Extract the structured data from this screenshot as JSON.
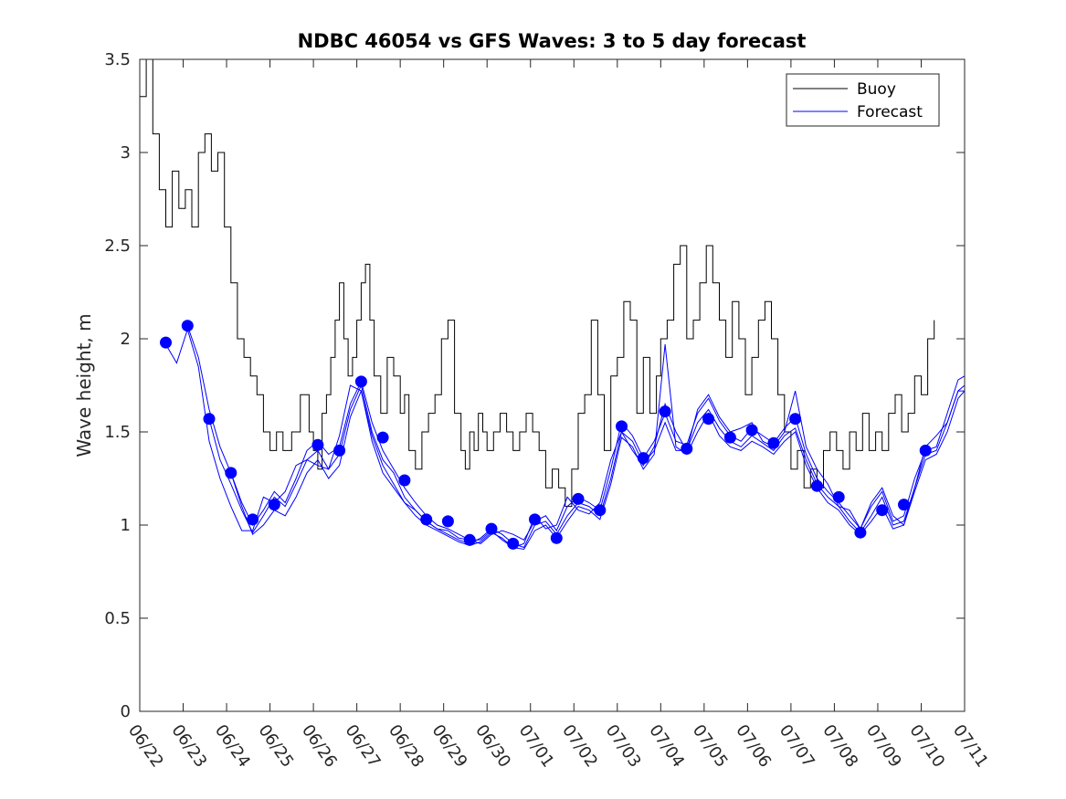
{
  "chart_data": {
    "type": "line",
    "title": "NDBC 46054 vs GFS Waves: 3 to 5 day forecast",
    "ylabel": "Wave height, m",
    "xlabel": "",
    "ylim": [
      0,
      3.5
    ],
    "xlim": [
      0,
      19
    ],
    "yticks": [
      "0",
      "0.5",
      "1",
      "1.5",
      "2",
      "2.5",
      "3",
      "3.5"
    ],
    "xticks": [
      "06/22",
      "06/23",
      "06/24",
      "06/25",
      "06/26",
      "06/27",
      "06/28",
      "06/29",
      "06/30",
      "07/01",
      "07/02",
      "07/03",
      "07/04",
      "07/05",
      "07/06",
      "07/07",
      "07/08",
      "07/09",
      "07/10",
      "07/11"
    ],
    "legend_position": "top-right",
    "grid": false,
    "colors": {
      "buoy": "#000000",
      "forecast": "#0000ff"
    },
    "series": [
      {
        "name": "Buoy",
        "x": [
          0,
          0.15,
          0.3,
          0.45,
          0.6,
          0.75,
          0.9,
          1.05,
          1.2,
          1.35,
          1.5,
          1.65,
          1.8,
          1.95,
          2.1,
          2.25,
          2.4,
          2.55,
          2.7,
          2.85,
          3.0,
          3.15,
          3.3,
          3.5,
          3.7,
          3.9,
          4.0,
          4.1,
          4.2,
          4.3,
          4.4,
          4.5,
          4.6,
          4.7,
          4.8,
          4.9,
          5.0,
          5.1,
          5.2,
          5.3,
          5.4,
          5.55,
          5.7,
          5.85,
          6.0,
          6.1,
          6.2,
          6.35,
          6.5,
          6.65,
          6.8,
          6.95,
          7.1,
          7.25,
          7.4,
          7.5,
          7.6,
          7.7,
          7.8,
          7.9,
          8.0,
          8.15,
          8.3,
          8.45,
          8.6,
          8.75,
          8.9,
          9.05,
          9.2,
          9.35,
          9.5,
          9.65,
          9.8,
          9.95,
          10.1,
          10.25,
          10.4,
          10.55,
          10.7,
          10.85,
          11.0,
          11.15,
          11.3,
          11.45,
          11.6,
          11.75,
          11.9,
          12.0,
          12.15,
          12.3,
          12.45,
          12.6,
          12.75,
          12.9,
          13.05,
          13.2,
          13.35,
          13.5,
          13.65,
          13.8,
          13.95,
          14.1,
          14.25,
          14.4,
          14.55,
          14.7,
          14.85,
          15.0,
          15.15,
          15.3,
          15.45,
          15.6,
          15.75,
          15.9,
          16.05,
          16.2,
          16.35,
          16.5,
          16.65,
          16.8,
          16.95,
          17.1,
          17.25,
          17.4,
          17.55,
          17.7,
          17.85,
          18.0,
          18.15,
          18.3
        ],
        "values": [
          3.3,
          3.5,
          3.1,
          2.8,
          2.6,
          2.9,
          2.7,
          2.8,
          2.6,
          3.0,
          3.1,
          2.9,
          3.0,
          2.6,
          2.3,
          2.0,
          1.9,
          1.8,
          1.7,
          1.5,
          1.4,
          1.5,
          1.4,
          1.5,
          1.7,
          1.5,
          1.4,
          1.3,
          1.6,
          1.7,
          1.9,
          2.1,
          2.3,
          2.0,
          1.8,
          1.9,
          2.1,
          2.3,
          2.4,
          2.1,
          1.8,
          1.6,
          1.9,
          1.8,
          1.6,
          1.7,
          1.4,
          1.3,
          1.5,
          1.6,
          1.7,
          2.0,
          2.1,
          1.6,
          1.4,
          1.3,
          1.5,
          1.4,
          1.6,
          1.5,
          1.4,
          1.5,
          1.6,
          1.5,
          1.4,
          1.5,
          1.6,
          1.5,
          1.4,
          1.2,
          1.3,
          1.2,
          1.1,
          1.3,
          1.6,
          1.7,
          2.1,
          1.7,
          1.4,
          1.8,
          1.9,
          2.2,
          2.1,
          1.6,
          1.9,
          1.6,
          1.8,
          2.0,
          2.1,
          2.4,
          2.5,
          2.0,
          2.1,
          2.3,
          2.5,
          2.3,
          2.1,
          1.9,
          2.2,
          2.0,
          1.7,
          1.9,
          2.1,
          2.2,
          2.0,
          1.7,
          1.5,
          1.3,
          1.4,
          1.2,
          1.3,
          1.2,
          1.4,
          1.5,
          1.4,
          1.3,
          1.5,
          1.4,
          1.6,
          1.4,
          1.5,
          1.4,
          1.6,
          1.7,
          1.5,
          1.6,
          1.8,
          1.7,
          2.0,
          2.1
        ]
      },
      {
        "name": "Forecast",
        "marker_x": [
          0.6,
          1.1,
          1.6,
          2.1,
          2.6,
          3.1,
          4.1,
          4.6,
          5.1,
          5.6,
          6.1,
          6.6,
          7.1,
          7.6,
          8.1,
          8.6,
          9.1,
          9.6,
          10.1,
          10.6,
          11.1,
          11.6,
          12.1,
          12.6,
          13.1,
          13.6,
          14.1,
          14.6,
          15.1,
          15.6,
          16.1,
          16.6,
          17.1,
          17.6,
          18.1
        ],
        "marker_values": [
          1.98,
          2.07,
          1.57,
          1.28,
          1.03,
          1.11,
          1.43,
          1.4,
          1.77,
          1.47,
          1.24,
          1.03,
          1.02,
          0.92,
          0.98,
          0.9,
          1.03,
          0.93,
          1.14,
          1.08,
          1.53,
          1.36,
          1.61,
          1.41,
          1.57,
          1.47,
          1.51,
          1.44,
          1.57,
          1.21,
          1.15,
          0.96,
          1.08,
          1.11,
          1.4
        ],
        "runs": [
          {
            "x": [
              0.6,
              0.85,
              1.1,
              1.35,
              1.6,
              1.85,
              2.1,
              2.35,
              2.6,
              2.85,
              3.1,
              3.35,
              3.6,
              3.85,
              4.1,
              4.35,
              4.6,
              4.85,
              5.1,
              5.35,
              5.6,
              5.85,
              6.1,
              6.35,
              6.6,
              6.85,
              7.1,
              7.35,
              7.6,
              7.85,
              8.1,
              8.35,
              8.6,
              8.85,
              9.1,
              9.35,
              9.6,
              9.85,
              10.1,
              10.35,
              10.6,
              10.85,
              11.1,
              11.35,
              11.6,
              11.85,
              12.1,
              12.35,
              12.6,
              12.85,
              13.1,
              13.35,
              13.6,
              13.85,
              14.1,
              14.35,
              14.6,
              14.85,
              15.1,
              15.35,
              15.6,
              15.85,
              16.1,
              16.35,
              16.6,
              16.85,
              17.1,
              17.35,
              17.6,
              17.85,
              18.1,
              18.35,
              18.6,
              18.85,
              19.0
            ],
            "values": [
              1.97,
              1.87,
              2.05,
              1.85,
              1.45,
              1.25,
              1.1,
              0.97,
              0.97,
              1.15,
              1.12,
              1.18,
              1.32,
              1.35,
              1.32,
              1.3,
              1.48,
              1.75,
              1.72,
              1.45,
              1.28,
              1.2,
              1.12,
              1.08,
              1.02,
              0.98,
              0.97,
              0.93,
              0.92,
              0.92,
              0.97,
              0.92,
              0.88,
              0.9,
              1.05,
              0.98,
              1.0,
              1.15,
              1.08,
              1.06,
              1.12,
              1.35,
              1.5,
              1.4,
              1.32,
              1.42,
              1.65,
              1.5,
              1.4,
              1.62,
              1.7,
              1.58,
              1.5,
              1.52,
              1.55,
              1.45,
              1.42,
              1.5,
              1.72,
              1.42,
              1.3,
              1.22,
              1.1,
              1.08,
              0.98,
              1.12,
              1.2,
              1.05,
              1.0,
              1.2,
              1.42,
              1.48,
              1.55,
              1.72,
              1.72
            ]
          },
          {
            "x": [
              1.1,
              1.35,
              1.6,
              1.85,
              2.1,
              2.35,
              2.6,
              2.85,
              3.1,
              3.35,
              3.6,
              3.85,
              4.1,
              4.35,
              4.6,
              4.85,
              5.1,
              5.35,
              5.6,
              5.85,
              6.1,
              6.35,
              6.6,
              6.85,
              7.1,
              7.35,
              7.6,
              7.85,
              8.1,
              8.35,
              8.6,
              8.85,
              9.1,
              9.35,
              9.6,
              9.85,
              10.1,
              10.35,
              10.6,
              10.85,
              11.1,
              11.35,
              11.6,
              11.85,
              12.1,
              12.35,
              12.6,
              12.85,
              13.1,
              13.35,
              13.6,
              13.85,
              14.1,
              14.35,
              14.6,
              14.85,
              15.1,
              15.35,
              15.6,
              15.85,
              16.1,
              16.35,
              16.6,
              16.85,
              17.1,
              17.35,
              17.6,
              17.85,
              18.1,
              18.35,
              18.6,
              18.85,
              19.0
            ],
            "values": [
              2.07,
              1.9,
              1.62,
              1.42,
              1.28,
              1.12,
              1.0,
              1.08,
              1.18,
              1.12,
              1.25,
              1.4,
              1.45,
              1.38,
              1.42,
              1.65,
              1.77,
              1.55,
              1.4,
              1.3,
              1.2,
              1.12,
              1.05,
              1.0,
              0.98,
              0.95,
              0.92,
              0.9,
              0.95,
              0.97,
              0.95,
              0.92,
              1.02,
              1.05,
              0.97,
              1.1,
              1.15,
              1.12,
              1.08,
              1.3,
              1.55,
              1.48,
              1.36,
              1.45,
              1.6,
              1.45,
              1.43,
              1.6,
              1.68,
              1.56,
              1.48,
              1.45,
              1.52,
              1.48,
              1.44,
              1.52,
              1.58,
              1.38,
              1.25,
              1.18,
              1.12,
              1.05,
              0.98,
              1.1,
              1.18,
              1.02,
              1.05,
              1.25,
              1.4,
              1.42,
              1.6,
              1.78,
              1.8
            ]
          },
          {
            "x": [
              1.6,
              1.85,
              2.1,
              2.35,
              2.6,
              2.85,
              3.1,
              3.35,
              3.6,
              3.85,
              4.1,
              4.35,
              4.6,
              4.85,
              5.1,
              5.35,
              5.6,
              5.85,
              6.1,
              6.35,
              6.6,
              6.85,
              7.1,
              7.35,
              7.6,
              7.85,
              8.1,
              8.35,
              8.6,
              8.85,
              9.1,
              9.35,
              9.6,
              9.85,
              10.1,
              10.35,
              10.6,
              10.85,
              11.1,
              11.35,
              11.6,
              11.85,
              12.1,
              12.35,
              12.6,
              12.85,
              13.1,
              13.35,
              13.6,
              13.85,
              14.1,
              14.35,
              14.6,
              14.85,
              15.1,
              15.35,
              15.6,
              15.85,
              16.1,
              16.35,
              16.6,
              16.85,
              17.1,
              17.35,
              17.6,
              17.85,
              18.1,
              18.35,
              18.6,
              18.85,
              19.0
            ],
            "values": [
              1.57,
              1.35,
              1.22,
              1.08,
              0.96,
              1.05,
              1.15,
              1.1,
              1.22,
              1.35,
              1.4,
              1.3,
              1.38,
              1.62,
              1.75,
              1.5,
              1.35,
              1.28,
              1.15,
              1.08,
              1.02,
              0.98,
              0.95,
              0.92,
              0.9,
              0.93,
              0.98,
              0.95,
              0.9,
              0.88,
              1.0,
              1.02,
              0.95,
              1.05,
              1.12,
              1.1,
              1.05,
              1.25,
              1.5,
              1.45,
              1.33,
              1.4,
              1.55,
              1.4,
              1.4,
              1.55,
              1.62,
              1.52,
              1.45,
              1.42,
              1.48,
              1.44,
              1.4,
              1.48,
              1.52,
              1.35,
              1.22,
              1.15,
              1.1,
              1.02,
              0.96,
              1.05,
              1.15,
              1.0,
              1.02,
              1.2,
              1.38,
              1.4,
              1.55,
              1.72,
              1.75
            ]
          },
          {
            "x": [
              2.1,
              2.35,
              2.6,
              2.85,
              3.1,
              3.35,
              3.6,
              3.85,
              4.1,
              4.35,
              4.6,
              4.85,
              5.1,
              5.35,
              5.6,
              5.85,
              6.1,
              6.35,
              6.6,
              6.85,
              7.1,
              7.35,
              7.6,
              7.85,
              8.1,
              8.35,
              8.6,
              8.85,
              9.1,
              9.35,
              9.6,
              9.85,
              10.1,
              10.35,
              10.6,
              10.85,
              11.1,
              11.35,
              11.6,
              11.85,
              12.1,
              12.35,
              12.6,
              12.85,
              13.1,
              13.35,
              13.6,
              13.85,
              14.1,
              14.35,
              14.6,
              14.85,
              15.1,
              15.35,
              15.6,
              15.85,
              16.1,
              16.35,
              16.6,
              16.85,
              17.1,
              17.35,
              17.6,
              17.85,
              18.1,
              18.35,
              18.6,
              18.85,
              19.0
            ],
            "values": [
              1.28,
              1.1,
              0.95,
              1.0,
              1.08,
              1.05,
              1.15,
              1.28,
              1.35,
              1.25,
              1.32,
              1.58,
              1.72,
              1.48,
              1.32,
              1.22,
              1.12,
              1.05,
              1.0,
              0.97,
              0.94,
              0.91,
              0.89,
              0.91,
              0.96,
              0.93,
              0.88,
              0.87,
              0.97,
              1.0,
              0.93,
              1.02,
              1.1,
              1.08,
              1.03,
              1.22,
              1.47,
              1.42,
              1.3,
              1.38,
              1.97,
              1.42,
              1.38,
              1.5,
              1.6,
              1.48,
              1.42,
              1.4,
              1.45,
              1.42,
              1.38,
              1.45,
              1.5,
              1.32,
              1.2,
              1.12,
              1.08,
              1.0,
              0.95,
              1.02,
              1.1,
              0.98,
              1.0,
              1.18,
              1.35,
              1.38,
              1.5,
              1.68,
              1.72
            ]
          }
        ]
      }
    ]
  }
}
